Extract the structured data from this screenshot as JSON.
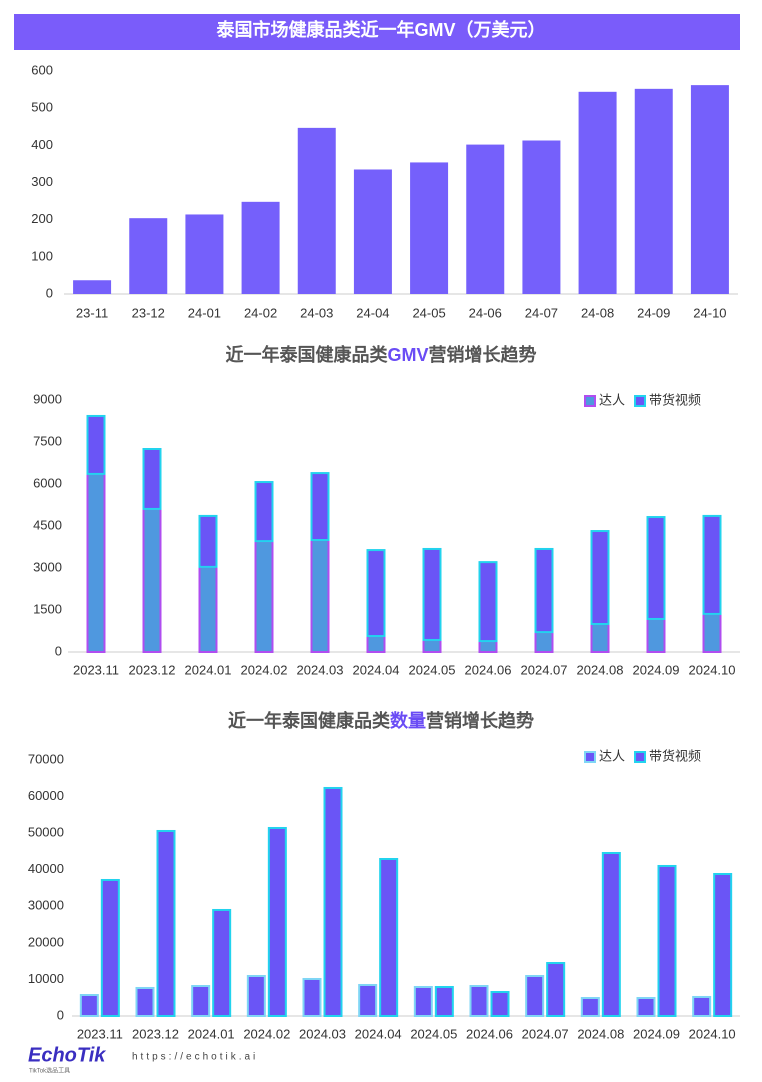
{
  "chart_data": [
    {
      "type": "bar",
      "title": "泰国市场健康品类近一年GMV（万美元）",
      "title_background": "#7a5cfa",
      "categories": [
        "23-11",
        "23-12",
        "24-01",
        "24-02",
        "24-03",
        "24-04",
        "24-05",
        "24-06",
        "24-07",
        "24-08",
        "24-09",
        "24-10"
      ],
      "values": [
        37,
        204,
        214,
        248,
        447,
        335,
        354,
        402,
        413,
        544,
        552,
        562
      ],
      "color": "#7560fb",
      "ylim": [
        0,
        600
      ],
      "yticks": [
        0,
        100,
        200,
        300,
        400,
        500,
        600
      ],
      "grid": false
    },
    {
      "type": "stacked_bar",
      "title": [
        {
          "text": "近一年泰国健康品类",
          "color": "#555555"
        },
        {
          "text": "GMV",
          "color": "#6a4cf5"
        },
        {
          "text": "营销增长趋势",
          "color": "#555555"
        }
      ],
      "categories": [
        "2023.11",
        "2023.12",
        "2024.01",
        "2024.02",
        "2024.03",
        "2024.04",
        "2024.05",
        "2024.06",
        "2024.07",
        "2024.08",
        "2024.09",
        "2024.10"
      ],
      "series": [
        {
          "name": "达人",
          "color": "#4f98df",
          "edge": "#b04df0",
          "values": [
            6360,
            5110,
            3040,
            3960,
            4000,
            570,
            430,
            390,
            710,
            1000,
            1180,
            1360
          ]
        },
        {
          "name": "带货视频",
          "color": "#6a55f6",
          "edge": "#22d3ee",
          "values": [
            2070,
            2140,
            1820,
            2110,
            2390,
            3070,
            3250,
            2820,
            2970,
            3320,
            3640,
            3500
          ]
        }
      ],
      "ylim": [
        0,
        9000
      ],
      "yticks": [
        0,
        1500,
        3000,
        4500,
        6000,
        7500,
        9000
      ],
      "grid": false,
      "legend": "top-right"
    },
    {
      "type": "grouped_bar",
      "title": [
        {
          "text": "近一年泰国健康品类",
          "color": "#555555"
        },
        {
          "text": "数量",
          "color": "#6a4cf5"
        },
        {
          "text": "营销增长趋势",
          "color": "#555555"
        }
      ],
      "categories": [
        "2023.11",
        "2023.12",
        "2024.01",
        "2024.02",
        "2024.03",
        "2024.04",
        "2024.05",
        "2024.06",
        "2024.07",
        "2024.08",
        "2024.09",
        "2024.10"
      ],
      "series": [
        {
          "name": "达人",
          "color": "#6a55f6",
          "edge": "#7fd6f5",
          "values": [
            5740,
            7660,
            8200,
            10940,
            10120,
            8480,
            7930,
            8200,
            10940,
            4920,
            4920,
            5200
          ]
        },
        {
          "name": "带货视频",
          "color": "#6a55f6",
          "edge": "#22d3ee",
          "values": [
            37190,
            50590,
            28990,
            51410,
            62350,
            42930,
            7930,
            6560,
            14490,
            44570,
            41020,
            38830
          ]
        }
      ],
      "ylim": [
        0,
        70000
      ],
      "yticks": [
        0,
        10000,
        20000,
        30000,
        40000,
        50000,
        60000,
        70000
      ],
      "grid": false,
      "legend": "top-right"
    }
  ],
  "footer": {
    "logo": "EchoTik",
    "tagline": "TikTok选品工具",
    "url": "https://echotik.ai"
  }
}
